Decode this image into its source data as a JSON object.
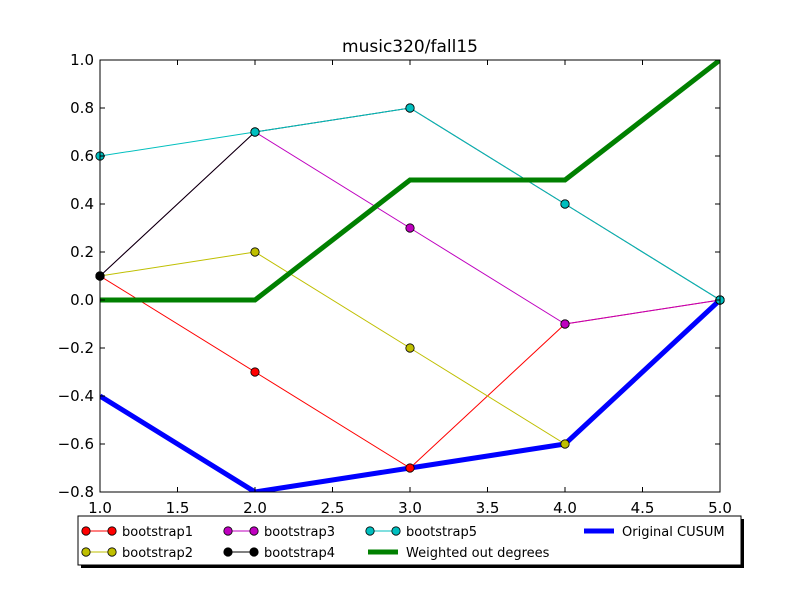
{
  "chart_data": {
    "type": "line",
    "title": "music320/fall15",
    "xlabel": "",
    "ylabel": "",
    "xlim": [
      1.0,
      5.0
    ],
    "ylim": [
      -0.8,
      1.0
    ],
    "xticks": [
      "1.0",
      "1.5",
      "2.0",
      "2.5",
      "3.0",
      "3.5",
      "4.0",
      "4.5",
      "5.0"
    ],
    "yticks": [
      "−0.8",
      "−0.6",
      "−0.4",
      "−0.2",
      "0.0",
      "0.2",
      "0.4",
      "0.6",
      "0.8",
      "1.0"
    ],
    "grid": false,
    "legend_position": "bottom",
    "series": [
      {
        "name": "bootstrap1",
        "color": "#ff0000",
        "marker": true,
        "width": 1,
        "x": [
          1,
          2,
          3,
          4,
          5
        ],
        "y": [
          0.1,
          -0.3,
          -0.7,
          -0.1,
          0.0
        ]
      },
      {
        "name": "bootstrap2",
        "color": "#bfbf00",
        "marker": true,
        "width": 1,
        "x": [
          1,
          2,
          3,
          4,
          5
        ],
        "y": [
          0.1,
          0.2,
          -0.2,
          -0.6,
          0.0
        ]
      },
      {
        "name": "bootstrap3",
        "color": "#bf00bf",
        "marker": true,
        "width": 1,
        "x": [
          1,
          2,
          3,
          4,
          5
        ],
        "y": [
          0.1,
          0.7,
          0.3,
          -0.1,
          0.0
        ]
      },
      {
        "name": "bootstrap4",
        "color": "#000000",
        "marker": true,
        "width": 1,
        "x": [
          1,
          2,
          3,
          4,
          5
        ],
        "y": [
          0.1,
          0.7,
          0.8,
          0.4,
          0.0
        ]
      },
      {
        "name": "bootstrap5",
        "color": "#00bfbf",
        "marker": true,
        "width": 1,
        "x": [
          1,
          2,
          3,
          4,
          5
        ],
        "y": [
          0.6,
          0.7,
          0.8,
          0.4,
          0.0
        ]
      },
      {
        "name": "Weighted out degrees",
        "color": "#008000",
        "marker": false,
        "width": 5,
        "x": [
          1,
          2,
          3,
          4,
          5
        ],
        "y": [
          0.0,
          0.0,
          0.5,
          0.5,
          1.0
        ]
      },
      {
        "name": "Original CUSUM",
        "color": "#0000ff",
        "marker": false,
        "width": 5,
        "x": [
          1,
          2,
          3,
          4,
          5
        ],
        "y": [
          -0.4,
          -0.8,
          -0.7,
          -0.6,
          0.0
        ]
      }
    ]
  }
}
